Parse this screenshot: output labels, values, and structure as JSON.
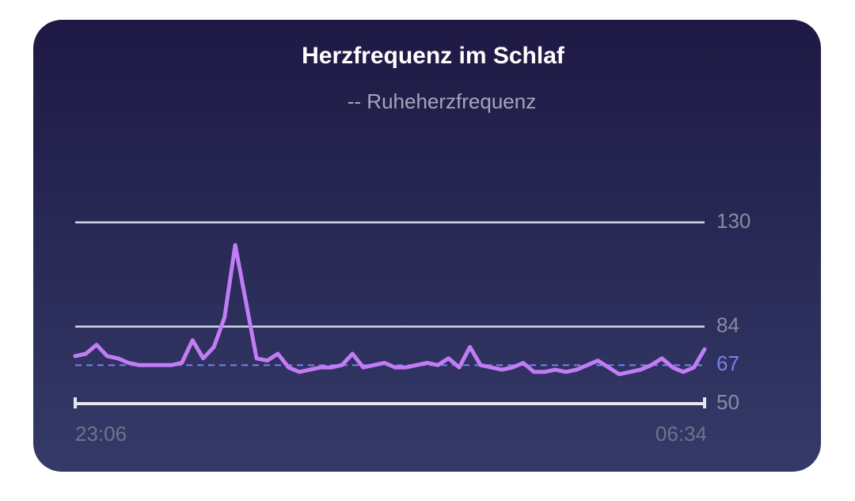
{
  "chart_data": {
    "type": "line",
    "title": "Herzfrequenz im Schlaf",
    "subtitle": "-- Ruheherzfrequenz",
    "categories": [
      "23:06",
      null,
      null,
      null,
      null,
      null,
      null,
      null,
      null,
      null,
      null,
      null,
      null,
      null,
      null,
      null,
      null,
      null,
      null,
      null,
      null,
      null,
      null,
      null,
      null,
      null,
      null,
      null,
      null,
      null,
      null,
      null,
      null,
      null,
      null,
      null,
      null,
      null,
      null,
      null,
      null,
      null,
      null,
      null,
      null,
      null,
      null,
      null,
      null,
      null,
      null,
      null,
      null,
      null,
      null,
      null,
      null,
      null,
      null,
      "06:34"
    ],
    "series": [
      {
        "color": "#c27cf5",
        "values": [
          71,
          72,
          76,
          71,
          70,
          68,
          67,
          67,
          67,
          67,
          68,
          78,
          70,
          75,
          88,
          120,
          95,
          70,
          69,
          72,
          66,
          64,
          65,
          66,
          66,
          67,
          72,
          66,
          67,
          68,
          66,
          66,
          67,
          68,
          67,
          70,
          66,
          75,
          67,
          66,
          65,
          66,
          68,
          64,
          64,
          65,
          64,
          65,
          67,
          69,
          66,
          63,
          64,
          65,
          67,
          70,
          66,
          64,
          66,
          74
        ]
      }
    ],
    "resting": {
      "value": 67,
      "color": "#7b80ea"
    },
    "ylim": [
      50,
      130
    ],
    "yticks": [
      50,
      84,
      130
    ],
    "grid": true
  }
}
